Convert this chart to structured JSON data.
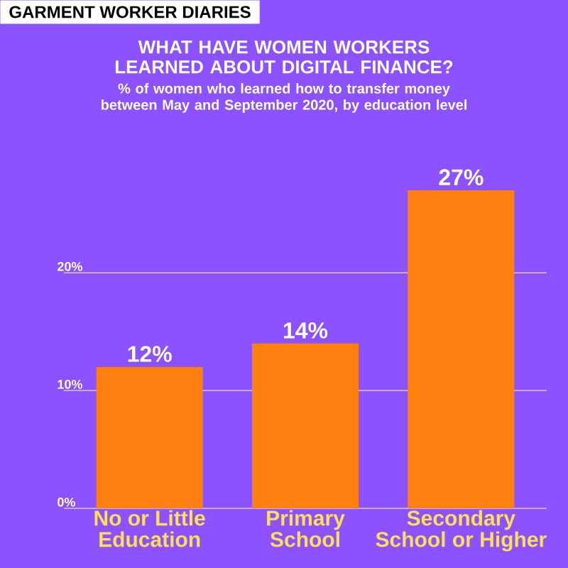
{
  "chart_data": {
    "type": "bar",
    "title": "WHAT HAVE WOMEN WORKERS LEARNED ABOUT DIGITAL FINANCE?",
    "subtitle": "% of women who learned how to transfer money between May and September 2020, by education level",
    "annotations": [
      "GARMENT WORKER DIARIES"
    ],
    "categories": [
      "No or Little Education",
      "Primary School",
      "Secondary School or Higher"
    ],
    "values": [
      12,
      14,
      27
    ],
    "value_labels": [
      "12%",
      "14%",
      "27%"
    ],
    "color": "#ff7f0f",
    "ylim": [
      0,
      27
    ],
    "yticks": [
      {
        "value": 0,
        "label": "0%"
      },
      {
        "value": 10,
        "label": "10%"
      },
      {
        "value": 20,
        "label": "20%"
      }
    ],
    "grid": "y"
  }
}
